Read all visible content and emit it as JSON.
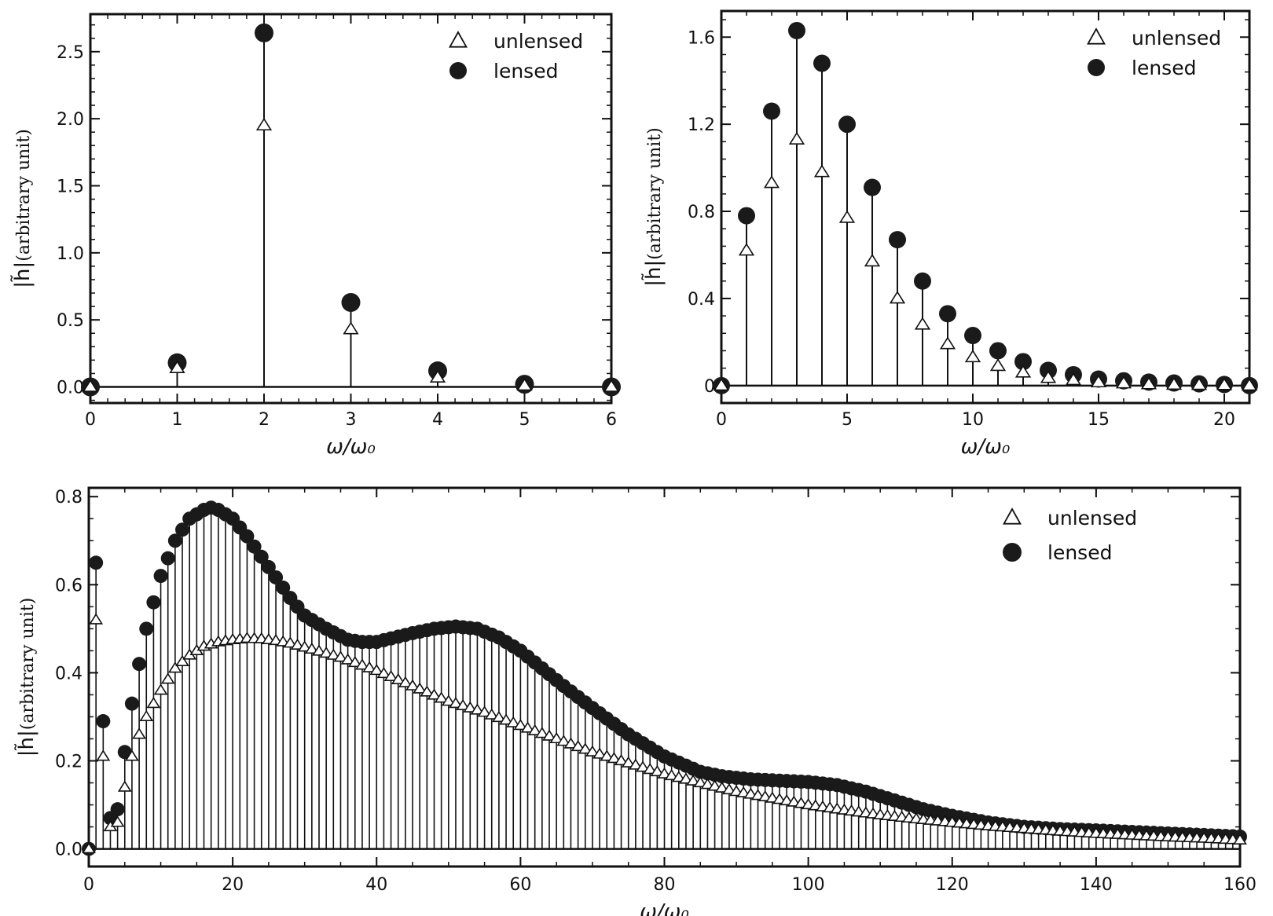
{
  "chart_data": [
    {
      "id": "top-left",
      "type": "stem",
      "xlabel": "ω/ω₀",
      "ylabel": "|h̃|",
      "ylabel_sub": "(arbitrary unit)",
      "xlim": [
        0,
        6
      ],
      "ylim": [
        -0.12,
        2.78
      ],
      "xticks": [
        0,
        1,
        2,
        3,
        4,
        5,
        6
      ],
      "xtick_labels": [
        "0",
        "1",
        "2",
        "3",
        "4",
        "5",
        "6"
      ],
      "yticks": [
        0,
        0.5,
        1.0,
        1.5,
        2.0,
        2.5
      ],
      "ytick_labels": [
        "0.0",
        "0.5",
        "1.0",
        "1.5",
        "2.0",
        "2.5"
      ],
      "legend_position": "top-right",
      "series": [
        {
          "name": "unlensed",
          "marker": "triangle",
          "x": [
            0,
            1,
            2,
            3,
            4,
            5,
            6
          ],
          "values": [
            0,
            0.14,
            1.95,
            0.43,
            0.07,
            0.01,
            0
          ]
        },
        {
          "name": "lensed",
          "marker": "circle",
          "x": [
            0,
            1,
            2,
            3,
            4,
            5,
            6
          ],
          "values": [
            0,
            0.18,
            2.64,
            0.63,
            0.12,
            0.02,
            0
          ]
        }
      ]
    },
    {
      "id": "top-right",
      "type": "stem",
      "xlabel": "ω/ω₀",
      "ylabel": "|h̃|",
      "ylabel_sub": "(arbitrary unit)",
      "xlim": [
        0,
        21
      ],
      "ylim": [
        -0.08,
        1.72
      ],
      "xticks": [
        0,
        5,
        10,
        15,
        20
      ],
      "xtick_labels": [
        "0",
        "5",
        "10",
        "15",
        "20"
      ],
      "yticks": [
        0,
        0.4,
        0.8,
        1.2,
        1.6
      ],
      "ytick_labels": [
        "0",
        "0.4",
        "0.8",
        "1.2",
        "1.6"
      ],
      "legend_position": "top-right",
      "series": [
        {
          "name": "unlensed",
          "marker": "triangle",
          "x": [
            0,
            1,
            2,
            3,
            4,
            5,
            6,
            7,
            8,
            9,
            10,
            11,
            12,
            13,
            14,
            15,
            16,
            17,
            18,
            19,
            20,
            21
          ],
          "values": [
            0,
            0.62,
            0.93,
            1.13,
            0.98,
            0.77,
            0.57,
            0.4,
            0.28,
            0.19,
            0.13,
            0.09,
            0.06,
            0.035,
            0.025,
            0.015,
            0.01,
            0.006,
            0.004,
            0.003,
            0.002,
            0
          ]
        },
        {
          "name": "lensed",
          "marker": "circle",
          "x": [
            0,
            1,
            2,
            3,
            4,
            5,
            6,
            7,
            8,
            9,
            10,
            11,
            12,
            13,
            14,
            15,
            16,
            17,
            18,
            19,
            20,
            21
          ],
          "values": [
            0,
            0.78,
            1.26,
            1.63,
            1.48,
            1.2,
            0.91,
            0.67,
            0.48,
            0.33,
            0.23,
            0.16,
            0.11,
            0.07,
            0.05,
            0.03,
            0.022,
            0.016,
            0.012,
            0.008,
            0.005,
            0
          ]
        }
      ]
    },
    {
      "id": "bottom",
      "type": "stem",
      "xlabel": "ω/ω₀",
      "ylabel": "|h̃|",
      "ylabel_sub": "(arbitrary unit)",
      "xlim": [
        0,
        160
      ],
      "ylim": [
        -0.04,
        0.82
      ],
      "xticks": [
        0,
        20,
        40,
        60,
        80,
        100,
        120,
        140,
        160
      ],
      "xtick_labels": [
        "0",
        "20",
        "40",
        "60",
        "80",
        "100",
        "120",
        "140",
        "160"
      ],
      "yticks": [
        0,
        0.2,
        0.4,
        0.6,
        0.8
      ],
      "ytick_labels": [
        "0.0",
        "0.2",
        "0.4",
        "0.6",
        "0.8"
      ],
      "legend_position": "top-right",
      "sampling": "every integer ω/ω₀ from 0 to 160",
      "series": [
        {
          "name": "unlensed",
          "marker": "triangle",
          "key_points": {
            "x": [
              0,
              1,
              2,
              3,
              4,
              5,
              6,
              7,
              8,
              9,
              10,
              12,
              14,
              16,
              18,
              20,
              22,
              24,
              26,
              28,
              30,
              35,
              40,
              45,
              50,
              55,
              60,
              65,
              70,
              75,
              80,
              85,
              90,
              95,
              100,
              105,
              110,
              115,
              120,
              125,
              130,
              135,
              140,
              145,
              150,
              155,
              160
            ],
            "values": [
              0,
              0.52,
              0.21,
              0.05,
              0.06,
              0.14,
              0.21,
              0.26,
              0.3,
              0.33,
              0.36,
              0.41,
              0.44,
              0.46,
              0.47,
              0.475,
              0.478,
              0.477,
              0.473,
              0.467,
              0.458,
              0.435,
              0.405,
              0.37,
              0.335,
              0.31,
              0.28,
              0.25,
              0.22,
              0.195,
              0.17,
              0.15,
              0.13,
              0.115,
              0.1,
              0.088,
              0.077,
              0.068,
              0.06,
              0.052,
              0.046,
              0.04,
              0.035,
              0.031,
              0.027,
              0.024,
              0.02
            ]
          }
        },
        {
          "name": "lensed",
          "marker": "circle",
          "key_points": {
            "x": [
              0,
              1,
              2,
              3,
              4,
              5,
              6,
              7,
              8,
              9,
              10,
              11,
              12,
              14,
              16,
              17,
              18,
              20,
              22,
              25,
              28,
              30,
              33,
              36,
              38,
              40,
              42,
              45,
              48,
              51,
              54,
              57,
              60,
              63,
              66,
              70,
              75,
              80,
              85,
              88,
              92,
              96,
              100,
              104,
              108,
              112,
              116,
              120,
              125,
              130,
              135,
              140,
              150,
              160
            ],
            "values": [
              0,
              0.65,
              0.29,
              0.07,
              0.09,
              0.22,
              0.33,
              0.42,
              0.5,
              0.56,
              0.62,
              0.66,
              0.7,
              0.75,
              0.77,
              0.775,
              0.77,
              0.75,
              0.71,
              0.64,
              0.57,
              0.53,
              0.5,
              0.475,
              0.47,
              0.47,
              0.478,
              0.49,
              0.5,
              0.505,
              0.5,
              0.48,
              0.45,
              0.41,
              0.37,
              0.32,
              0.26,
              0.21,
              0.175,
              0.165,
              0.158,
              0.155,
              0.152,
              0.145,
              0.13,
              0.11,
              0.09,
              0.075,
              0.06,
              0.05,
              0.045,
              0.042,
              0.035,
              0.028
            ]
          }
        }
      ]
    }
  ]
}
